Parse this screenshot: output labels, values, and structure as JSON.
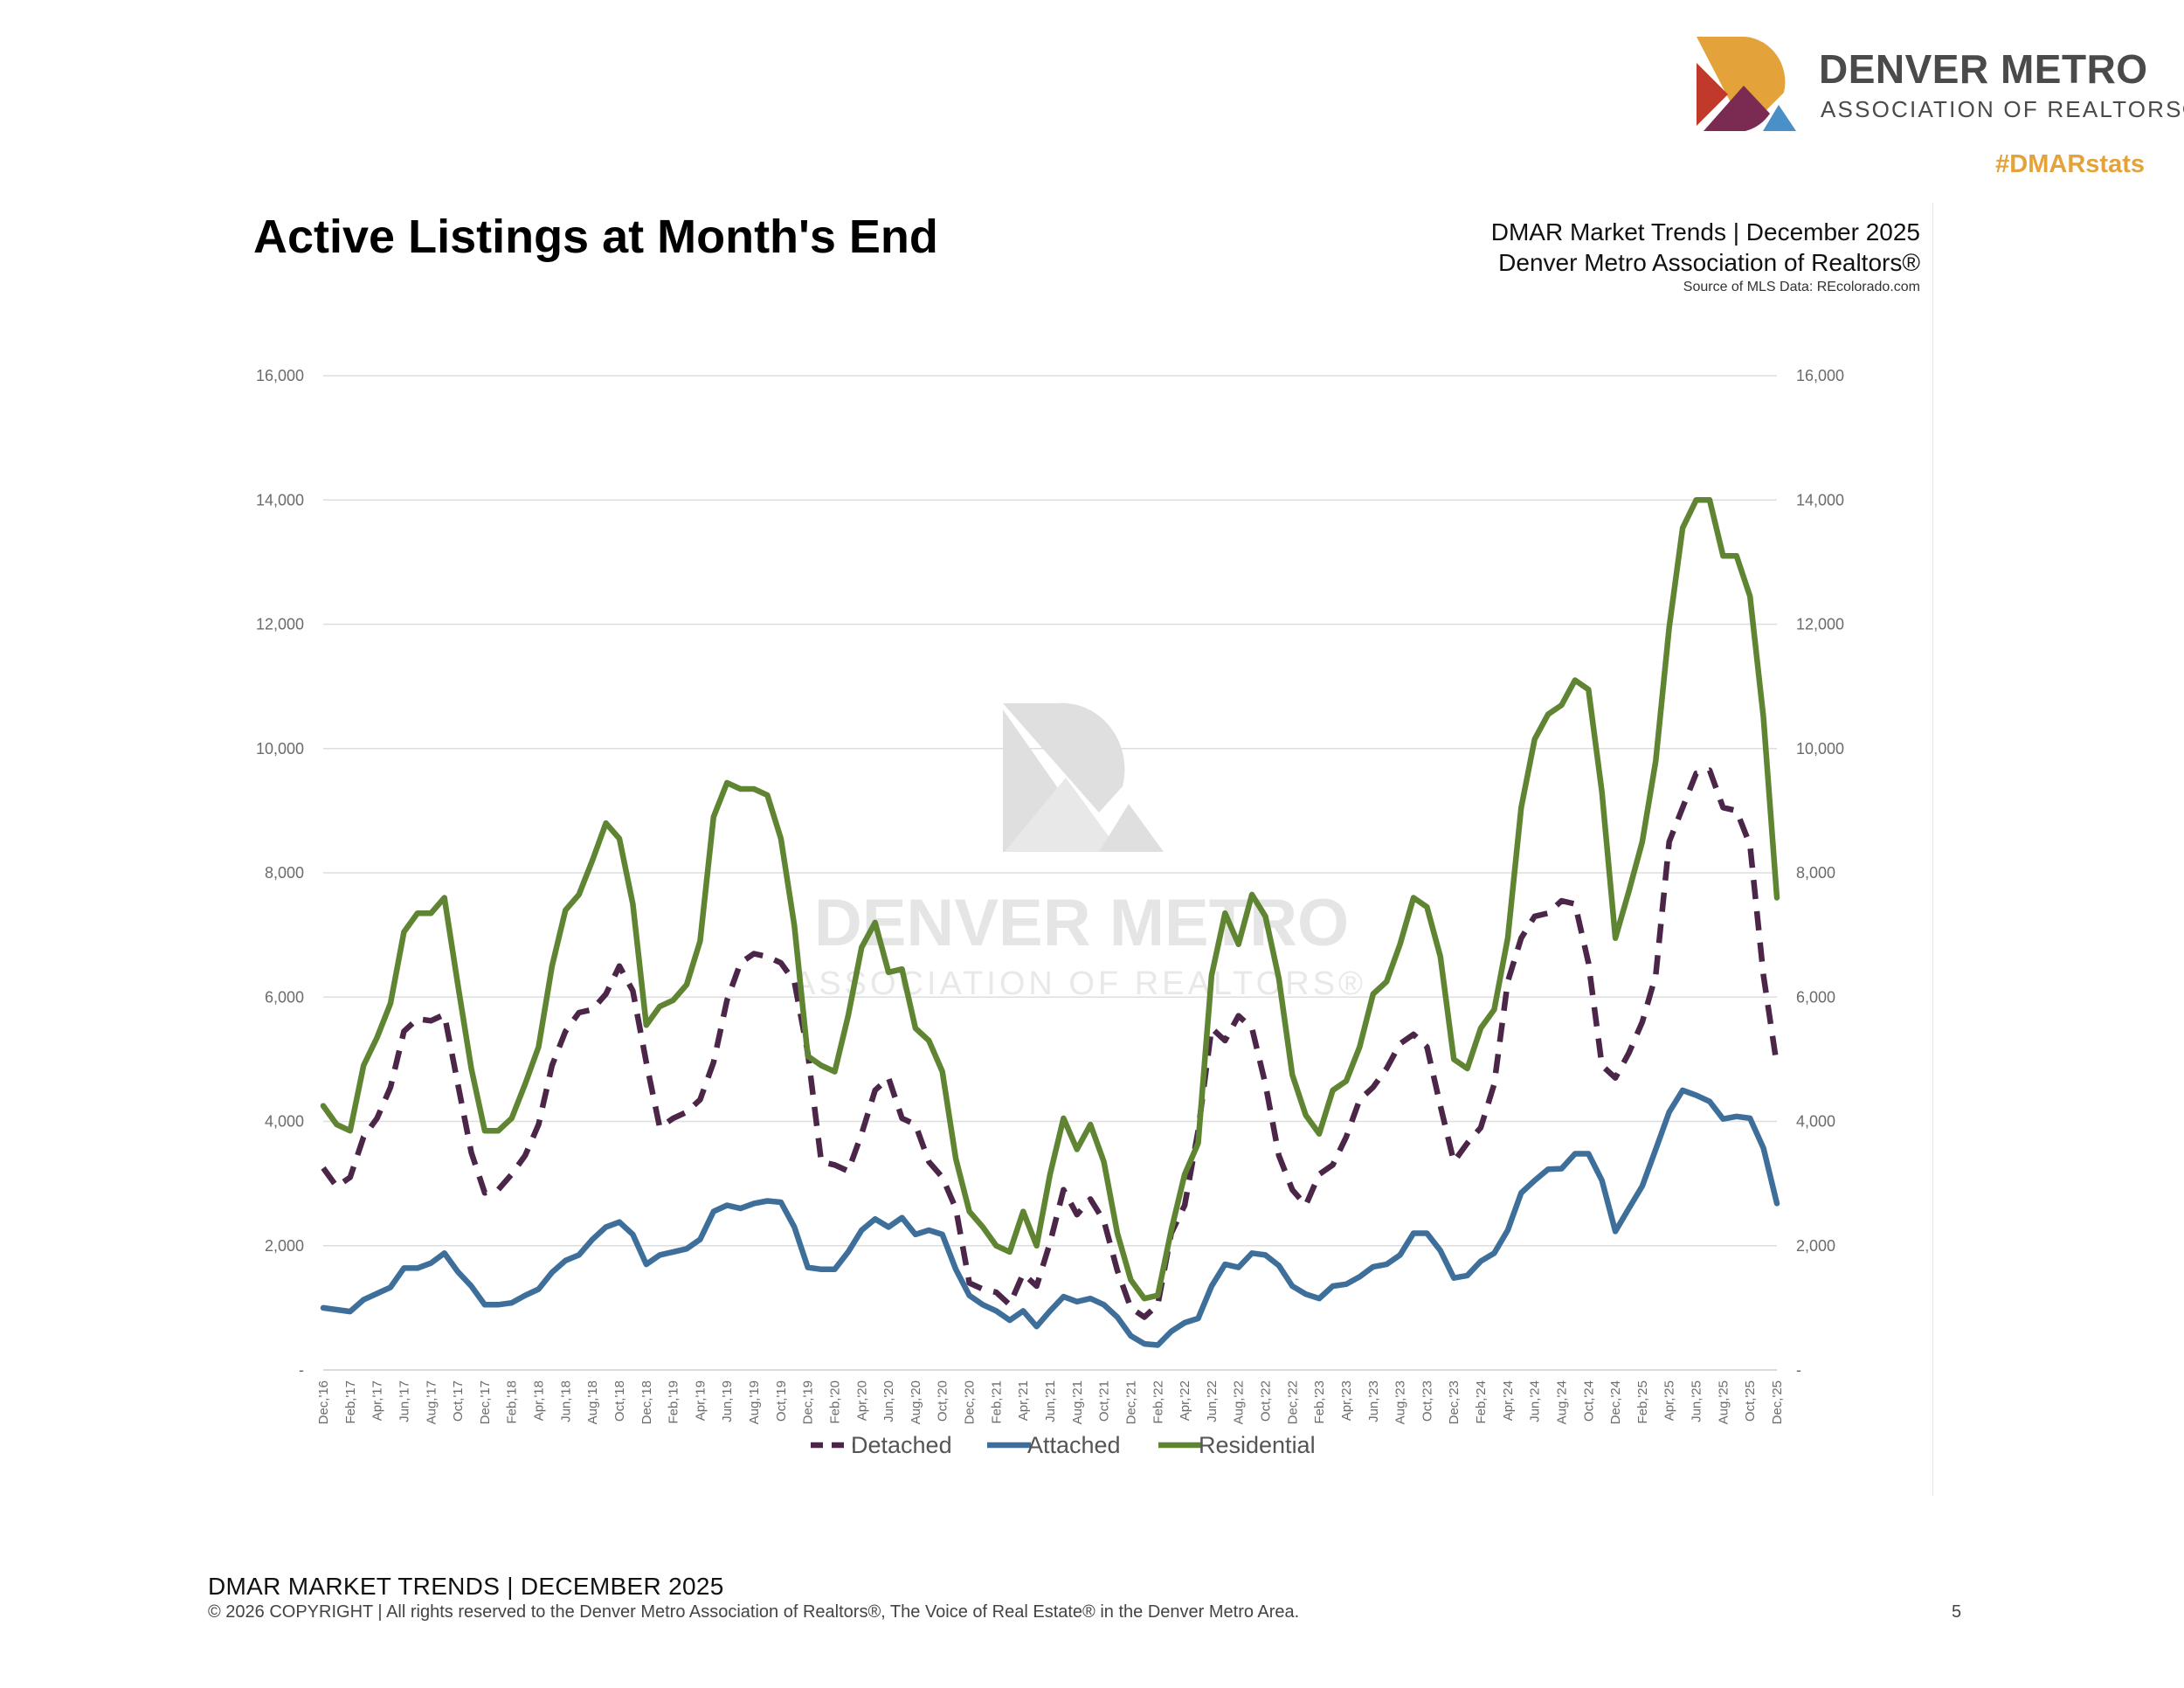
{
  "brand": {
    "name": "DENVER METRO",
    "subtitle": "ASSOCIATION OF REALTORS®",
    "hashtag": "#DMARstats",
    "logo_colors": [
      "#e3a33a",
      "#c0392b",
      "#7b2a52",
      "#4a90c8"
    ]
  },
  "header": {
    "page_title": "Active Listings at Month's End",
    "report_title": "DMAR Market Trends | December 2025",
    "report_org": "Denver Metro Association of Realtors®",
    "report_source": "Source of MLS Data: REcolorado.com"
  },
  "watermark": {
    "line1": "DENVER METRO",
    "line2": "ASSOCIATION OF REALTORS®"
  },
  "chart_data": {
    "type": "line",
    "title": "Active Listings at Month's End",
    "xlabel": "",
    "ylabel": "",
    "ylim": [
      0,
      16000
    ],
    "y_ticks": [
      {
        "value": 0,
        "label": "-"
      },
      {
        "value": 2000,
        "label": "2,000"
      },
      {
        "value": 4000,
        "label": "4,000"
      },
      {
        "value": 6000,
        "label": "6,000"
      },
      {
        "value": 8000,
        "label": "8,000"
      },
      {
        "value": 10000,
        "label": "10,000"
      },
      {
        "value": 12000,
        "label": "12,000"
      },
      {
        "value": 14000,
        "label": "14,000"
      },
      {
        "value": 16000,
        "label": "16,000"
      }
    ],
    "grid": true,
    "legend_position": "bottom",
    "x_tick_labels": [
      "Dec,'16",
      "Feb,'17",
      "Apr,'17",
      "Jun,'17",
      "Aug,'17",
      "Oct,'17",
      "Dec,'17",
      "Feb,'18",
      "Apr,'18",
      "Jun,'18",
      "Aug,'18",
      "Oct,'18",
      "Dec,'18",
      "Feb,'19",
      "Apr,'19",
      "Jun,'19",
      "Aug,'19",
      "Oct,'19",
      "Dec,'19",
      "Feb,'20",
      "Apr,'20",
      "Jun,'20",
      "Aug,'20",
      "Oct,'20",
      "Dec,'20",
      "Feb,'21",
      "Apr,'21",
      "Jun,'21",
      "Aug,'21",
      "Oct,'21",
      "Dec,'21",
      "Feb,'22",
      "Apr,'22",
      "Jun,'22",
      "Aug,'22",
      "Oct,'22",
      "Dec,'22",
      "Feb,'23",
      "Apr,'23",
      "Jun,'23",
      "Aug,'23",
      "Oct,'23",
      "Dec,'23",
      "Feb,'24",
      "Apr,'24",
      "Jun,'24",
      "Aug,'24",
      "Oct,'24",
      "Dec,'24",
      "Feb,'25",
      "Apr,'25",
      "Jun,'25",
      "Aug,'25",
      "Oct,'25",
      "Dec,'25"
    ],
    "x_start": "2016-12",
    "x_end": "2025-12",
    "series": [
      {
        "name": "Detached",
        "color": "#4b2648",
        "style": "dashed",
        "values": [
          3250,
          2950,
          3100,
          3750,
          4050,
          4550,
          5450,
          5650,
          5620,
          5720,
          4600,
          3500,
          2850,
          2900,
          3150,
          3450,
          3950,
          4900,
          5450,
          5750,
          5800,
          6050,
          6500,
          6100,
          4950,
          3900,
          4050,
          4150,
          4350,
          4950,
          5950,
          6550,
          6700,
          6650,
          6550,
          6250,
          5100,
          3350,
          3300,
          3200,
          3800,
          4500,
          4700,
          4050,
          3950,
          3350,
          3100,
          2600,
          1400,
          1300,
          1250,
          1050,
          1550,
          1350,
          2050,
          2900,
          2500,
          2750,
          2400,
          1600,
          1000,
          850,
          1050,
          2200,
          2650,
          3850,
          5500,
          5300,
          5700,
          5500,
          4600,
          3450,
          2900,
          2650,
          3150,
          3300,
          3750,
          4350,
          4550,
          4850,
          5250,
          5400,
          5200,
          4250,
          3350,
          3650,
          3900,
          4600,
          6250,
          6950,
          7300,
          7350,
          7550,
          7500,
          6550,
          4900,
          4700,
          5100,
          5600,
          6350,
          8500,
          9050,
          9600,
          9650,
          9050,
          9000,
          8450,
          6350,
          4900
        ],
        "style_note": "dashed"
      },
      {
        "name": "Attached",
        "color": "#3e6f9a",
        "style": "solid",
        "values": [
          1000,
          970,
          940,
          1130,
          1230,
          1330,
          1640,
          1640,
          1720,
          1880,
          1580,
          1350,
          1050,
          1050,
          1080,
          1200,
          1300,
          1570,
          1760,
          1850,
          2100,
          2300,
          2380,
          2180,
          1700,
          1850,
          1900,
          1950,
          2100,
          2550,
          2650,
          2600,
          2680,
          2720,
          2700,
          2300,
          1650,
          1620,
          1620,
          1900,
          2250,
          2430,
          2300,
          2450,
          2180,
          2250,
          2180,
          1620,
          1200,
          1050,
          950,
          800,
          950,
          700,
          950,
          1180,
          1100,
          1150,
          1050,
          850,
          550,
          420,
          400,
          620,
          760,
          830,
          1350,
          1700,
          1650,
          1880,
          1850,
          1680,
          1350,
          1220,
          1150,
          1350,
          1380,
          1500,
          1660,
          1700,
          1850,
          2200,
          2200,
          1920,
          1480,
          1520,
          1750,
          1880,
          2250,
          2850,
          3050,
          3230,
          3240,
          3480,
          3480,
          3050,
          2230,
          2600,
          2960,
          3550,
          4150,
          4500,
          4420,
          4320,
          4040,
          4080,
          4050,
          3570,
          2680
        ]
      },
      {
        "name": "Residential",
        "color": "#5f8432",
        "style": "solid",
        "values": [
          4250,
          3950,
          3850,
          4900,
          5350,
          5900,
          7050,
          7350,
          7350,
          7600,
          6200,
          4850,
          3850,
          3850,
          4050,
          4600,
          5200,
          6500,
          7400,
          7650,
          8200,
          8800,
          8550,
          7500,
          5550,
          5850,
          5950,
          6200,
          6900,
          8900,
          9450,
          9350,
          9350,
          9250,
          8550,
          7150,
          5050,
          4900,
          4800,
          5700,
          6800,
          7200,
          6400,
          6450,
          5500,
          5300,
          4800,
          3400,
          2550,
          2300,
          2000,
          1900,
          2550,
          2000,
          3150,
          4050,
          3550,
          3950,
          3350,
          2200,
          1450,
          1150,
          1200,
          2250,
          3150,
          3650,
          6350,
          7350,
          6850,
          7650,
          7300,
          6300,
          4750,
          4100,
          3800,
          4500,
          4650,
          5200,
          6050,
          6250,
          6850,
          7600,
          7450,
          6650,
          5000,
          4850,
          5500,
          5800,
          6950,
          9050,
          10150,
          10550,
          10700,
          11100,
          10950,
          9300,
          6950,
          7700,
          8500,
          9800,
          11950,
          13550,
          14000,
          14000,
          13100,
          13100,
          12450,
          10500,
          7600
        ]
      }
    ]
  },
  "footer": {
    "title": "DMAR MARKET TRENDS | DECEMBER 2025",
    "copyright": "© 2026 COPYRIGHT | All rights reserved to the Denver Metro Association of Realtors®, The Voice of Real Estate® in the Denver Metro Area.",
    "page_number": "5"
  }
}
